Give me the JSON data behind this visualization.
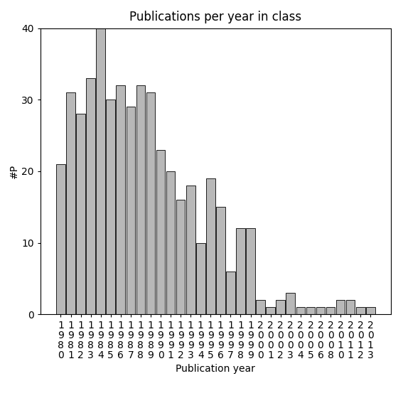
{
  "title": "Publications per year in class",
  "xlabel": "Publication year",
  "ylabel": "#P",
  "years": [
    "1980",
    "1981",
    "1982",
    "1983",
    "1984",
    "1985",
    "1986",
    "1987",
    "1988",
    "1989",
    "1990",
    "1991",
    "1992",
    "1993",
    "1994",
    "1995",
    "1996",
    "1997",
    "1998",
    "1999",
    "2000",
    "2001",
    "2002",
    "2003",
    "2004",
    "2005",
    "2006",
    "2008",
    "2010",
    "2011",
    "2012",
    "2013"
  ],
  "values": [
    21,
    31,
    28,
    33,
    40,
    30,
    32,
    29,
    32,
    31,
    23,
    20,
    16,
    18,
    10,
    19,
    15,
    6,
    12,
    12,
    2,
    1,
    2,
    3,
    1,
    1,
    1,
    1,
    2,
    2,
    1,
    1
  ],
  "bar_color": "#b8b8b8",
  "bar_edgecolor": "#000000",
  "background_color": "#ffffff",
  "ylim": [
    0,
    40
  ],
  "yticks": [
    0,
    10,
    20,
    30,
    40
  ],
  "title_fontsize": 12,
  "axis_label_fontsize": 10,
  "tick_label_fontsize": 10
}
